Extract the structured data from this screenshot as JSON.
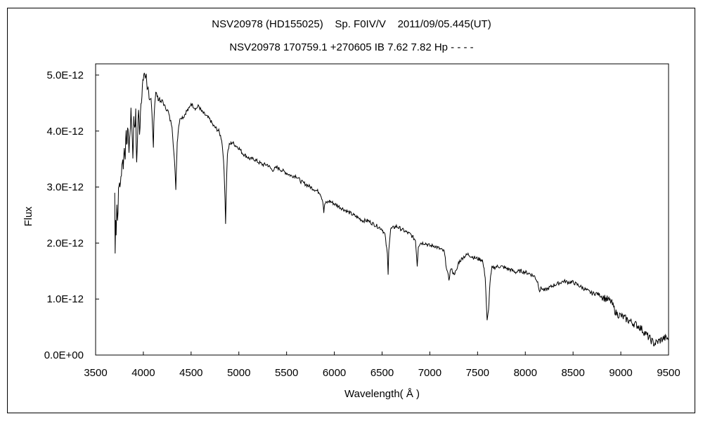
{
  "chart_data": {
    "type": "line",
    "title": "NSV20978 (HD155025)    Sp. F0IV/V    2011/09/05.445(UT)",
    "subtitle": "NSV20978 170759.1 +270605 IB 7.62 7.82 Hp - - - -",
    "xlabel": "Wavelength( Å )",
    "ylabel": "Flux",
    "xlim": [
      3500,
      9500
    ],
    "ylim": [
      0,
      5.2e-12
    ],
    "x_ticks": [
      "3500",
      "4000",
      "4500",
      "5000",
      "5500",
      "6000",
      "6500",
      "7000",
      "7500",
      "8000",
      "8500",
      "9000",
      "9500"
    ],
    "y_ticks": [
      "0.0E+00",
      "1.0E-12",
      "2.0E-12",
      "3.0E-12",
      "4.0E-12",
      "5.0E-12"
    ],
    "grid": false,
    "series": [
      {
        "values_unit": "1e-12 flux",
        "points": [
          [
            3700,
            2.9
          ],
          [
            3705,
            1.8
          ],
          [
            3710,
            2.5
          ],
          [
            3715,
            2.2
          ],
          [
            3722,
            2.7
          ],
          [
            3730,
            2.4
          ],
          [
            3740,
            2.9
          ],
          [
            3750,
            3.1
          ],
          [
            3760,
            3.0
          ],
          [
            3770,
            3.3
          ],
          [
            3780,
            3.5
          ],
          [
            3790,
            3.4
          ],
          [
            3800,
            3.7
          ],
          [
            3810,
            3.6
          ],
          [
            3820,
            3.9
          ],
          [
            3830,
            3.8
          ],
          [
            3840,
            4.1
          ],
          [
            3850,
            3.6
          ],
          [
            3860,
            4.0
          ],
          [
            3870,
            4.3
          ],
          [
            3880,
            4.1
          ],
          [
            3890,
            3.55
          ],
          [
            3900,
            4.2
          ],
          [
            3910,
            4.1
          ],
          [
            3920,
            4.3
          ],
          [
            3930,
            3.35
          ],
          [
            3940,
            4.0
          ],
          [
            3950,
            4.4
          ],
          [
            3960,
            3.9
          ],
          [
            3970,
            4.4
          ],
          [
            3980,
            4.6
          ],
          [
            3990,
            4.85
          ],
          [
            4000,
            4.9
          ],
          [
            4010,
            5.05
          ],
          [
            4020,
            4.95
          ],
          [
            4030,
            5.0
          ],
          [
            4040,
            4.75
          ],
          [
            4050,
            4.8
          ],
          [
            4060,
            4.6
          ],
          [
            4070,
            4.55
          ],
          [
            4080,
            4.55
          ],
          [
            4090,
            4.3
          ],
          [
            4100,
            3.9
          ],
          [
            4105,
            3.7
          ],
          [
            4110,
            4.2
          ],
          [
            4120,
            4.5
          ],
          [
            4130,
            4.7
          ],
          [
            4140,
            4.65
          ],
          [
            4150,
            4.6
          ],
          [
            4160,
            4.55
          ],
          [
            4170,
            4.6
          ],
          [
            4180,
            4.5
          ],
          [
            4200,
            4.55
          ],
          [
            4220,
            4.45
          ],
          [
            4240,
            4.4
          ],
          [
            4260,
            4.35
          ],
          [
            4280,
            4.2
          ],
          [
            4300,
            4.1
          ],
          [
            4320,
            3.6
          ],
          [
            4335,
            3.2
          ],
          [
            4340,
            2.95
          ],
          [
            4345,
            3.3
          ],
          [
            4355,
            3.8
          ],
          [
            4370,
            4.1
          ],
          [
            4390,
            4.25
          ],
          [
            4420,
            4.25
          ],
          [
            4450,
            4.35
          ],
          [
            4480,
            4.4
          ],
          [
            4500,
            4.5
          ],
          [
            4520,
            4.45
          ],
          [
            4550,
            4.4
          ],
          [
            4580,
            4.45
          ],
          [
            4610,
            4.35
          ],
          [
            4640,
            4.3
          ],
          [
            4670,
            4.25
          ],
          [
            4700,
            4.2
          ],
          [
            4730,
            4.1
          ],
          [
            4760,
            4.05
          ],
          [
            4790,
            4.0
          ],
          [
            4820,
            3.85
          ],
          [
            4840,
            3.5
          ],
          [
            4855,
            2.8
          ],
          [
            4861,
            2.35
          ],
          [
            4868,
            2.9
          ],
          [
            4880,
            3.6
          ],
          [
            4900,
            3.75
          ],
          [
            4930,
            3.8
          ],
          [
            4960,
            3.75
          ],
          [
            5000,
            3.7
          ],
          [
            5040,
            3.6
          ],
          [
            5080,
            3.55
          ],
          [
            5120,
            3.5
          ],
          [
            5160,
            3.5
          ],
          [
            5200,
            3.45
          ],
          [
            5250,
            3.4
          ],
          [
            5300,
            3.4
          ],
          [
            5350,
            3.3
          ],
          [
            5400,
            3.35
          ],
          [
            5450,
            3.3
          ],
          [
            5500,
            3.25
          ],
          [
            5550,
            3.2
          ],
          [
            5600,
            3.2
          ],
          [
            5650,
            3.1
          ],
          [
            5700,
            3.05
          ],
          [
            5750,
            3.0
          ],
          [
            5800,
            2.95
          ],
          [
            5850,
            2.9
          ],
          [
            5880,
            2.75
          ],
          [
            5890,
            2.55
          ],
          [
            5900,
            2.7
          ],
          [
            5950,
            2.75
          ],
          [
            6000,
            2.7
          ],
          [
            6050,
            2.65
          ],
          [
            6100,
            2.6
          ],
          [
            6150,
            2.55
          ],
          [
            6200,
            2.5
          ],
          [
            6250,
            2.45
          ],
          [
            6300,
            2.4
          ],
          [
            6350,
            2.4
          ],
          [
            6400,
            2.35
          ],
          [
            6450,
            2.3
          ],
          [
            6500,
            2.25
          ],
          [
            6530,
            2.15
          ],
          [
            6555,
            1.8
          ],
          [
            6563,
            1.42
          ],
          [
            6570,
            1.9
          ],
          [
            6590,
            2.25
          ],
          [
            6650,
            2.3
          ],
          [
            6700,
            2.25
          ],
          [
            6750,
            2.2
          ],
          [
            6800,
            2.15
          ],
          [
            6850,
            2.05
          ],
          [
            6868,
            1.6
          ],
          [
            6880,
            1.95
          ],
          [
            6900,
            2.0
          ],
          [
            6950,
            2.0
          ],
          [
            7000,
            1.95
          ],
          [
            7050,
            1.95
          ],
          [
            7100,
            1.9
          ],
          [
            7150,
            1.85
          ],
          [
            7180,
            1.5
          ],
          [
            7200,
            1.35
          ],
          [
            7220,
            1.55
          ],
          [
            7250,
            1.45
          ],
          [
            7280,
            1.5
          ],
          [
            7300,
            1.65
          ],
          [
            7350,
            1.75
          ],
          [
            7400,
            1.8
          ],
          [
            7450,
            1.75
          ],
          [
            7500,
            1.72
          ],
          [
            7550,
            1.7
          ],
          [
            7580,
            1.4
          ],
          [
            7600,
            0.6
          ],
          [
            7615,
            0.8
          ],
          [
            7630,
            1.3
          ],
          [
            7650,
            1.55
          ],
          [
            7700,
            1.58
          ],
          [
            7750,
            1.58
          ],
          [
            7800,
            1.55
          ],
          [
            7850,
            1.52
          ],
          [
            7900,
            1.48
          ],
          [
            7950,
            1.5
          ],
          [
            8000,
            1.48
          ],
          [
            8050,
            1.45
          ],
          [
            8100,
            1.4
          ],
          [
            8130,
            1.3
          ],
          [
            8150,
            1.15
          ],
          [
            8170,
            1.2
          ],
          [
            8200,
            1.15
          ],
          [
            8250,
            1.2
          ],
          [
            8300,
            1.25
          ],
          [
            8350,
            1.28
          ],
          [
            8400,
            1.32
          ],
          [
            8450,
            1.3
          ],
          [
            8500,
            1.3
          ],
          [
            8550,
            1.25
          ],
          [
            8600,
            1.2
          ],
          [
            8650,
            1.15
          ],
          [
            8700,
            1.1
          ],
          [
            8750,
            1.1
          ],
          [
            8800,
            1.05
          ],
          [
            8850,
            1.0
          ],
          [
            8900,
            0.95
          ],
          [
            8950,
            0.75
          ],
          [
            9000,
            0.7
          ],
          [
            9050,
            0.65
          ],
          [
            9100,
            0.6
          ],
          [
            9150,
            0.55
          ],
          [
            9200,
            0.5
          ],
          [
            9250,
            0.4
          ],
          [
            9300,
            0.3
          ],
          [
            9350,
            0.2
          ],
          [
            9400,
            0.25
          ],
          [
            9450,
            0.3
          ],
          [
            9500,
            0.3
          ]
        ]
      }
    ]
  }
}
